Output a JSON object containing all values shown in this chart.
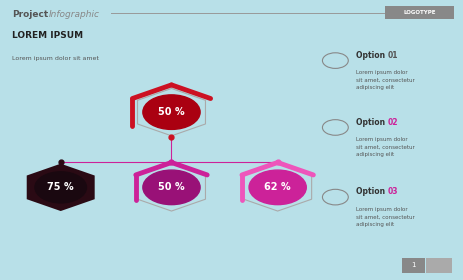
{
  "bg_color": "#b8e0e8",
  "title_bold": "Project",
  "title_italic": "Infographic",
  "logotype": "LOGOTYPE",
  "lorem_title": "LOREM IPSUM",
  "lorem_sub": "Lorem ipsum dolor sit amet",
  "title_line_color": "#999999",
  "hex_top": {
    "pct": "50 %",
    "outer_color": "#cc1122",
    "inner_color": "#aa0011",
    "bracket_color": "#cc1122"
  },
  "hex_left": {
    "pct": "75 %",
    "solid_color": "#2a0a14",
    "inner_color": "#1a0810"
  },
  "hex_mid": {
    "pct": "50 %",
    "outer_color": "#cc2299",
    "inner_color": "#991177"
  },
  "hex_right": {
    "pct": "62 %",
    "outer_color": "#ee55bb",
    "inner_color": "#cc2299"
  },
  "options": [
    {
      "label": "Option",
      "num": "01",
      "num_color": "#555555",
      "body": "Lorem ipsum dolor\nsit amet, consectetur\nadipiscing elit"
    },
    {
      "label": "Option",
      "num": "02",
      "num_color": "#cc2299",
      "body": "Lorem ipsum dolor\nsit amet, consectetur\nadipiscing elit"
    },
    {
      "label": "Option",
      "num": "03",
      "num_color": "#cc2299",
      "body": "Lorem ipsum dolor\nsit amet, consectetur\nadipiscing elit"
    }
  ],
  "connector_color": "#cc2299",
  "dot_color_top": "#cc1122",
  "dot_color_left": "#2a0a14",
  "dot_color_mid": "#cc2299",
  "dot_color_right": "#ee55bb"
}
